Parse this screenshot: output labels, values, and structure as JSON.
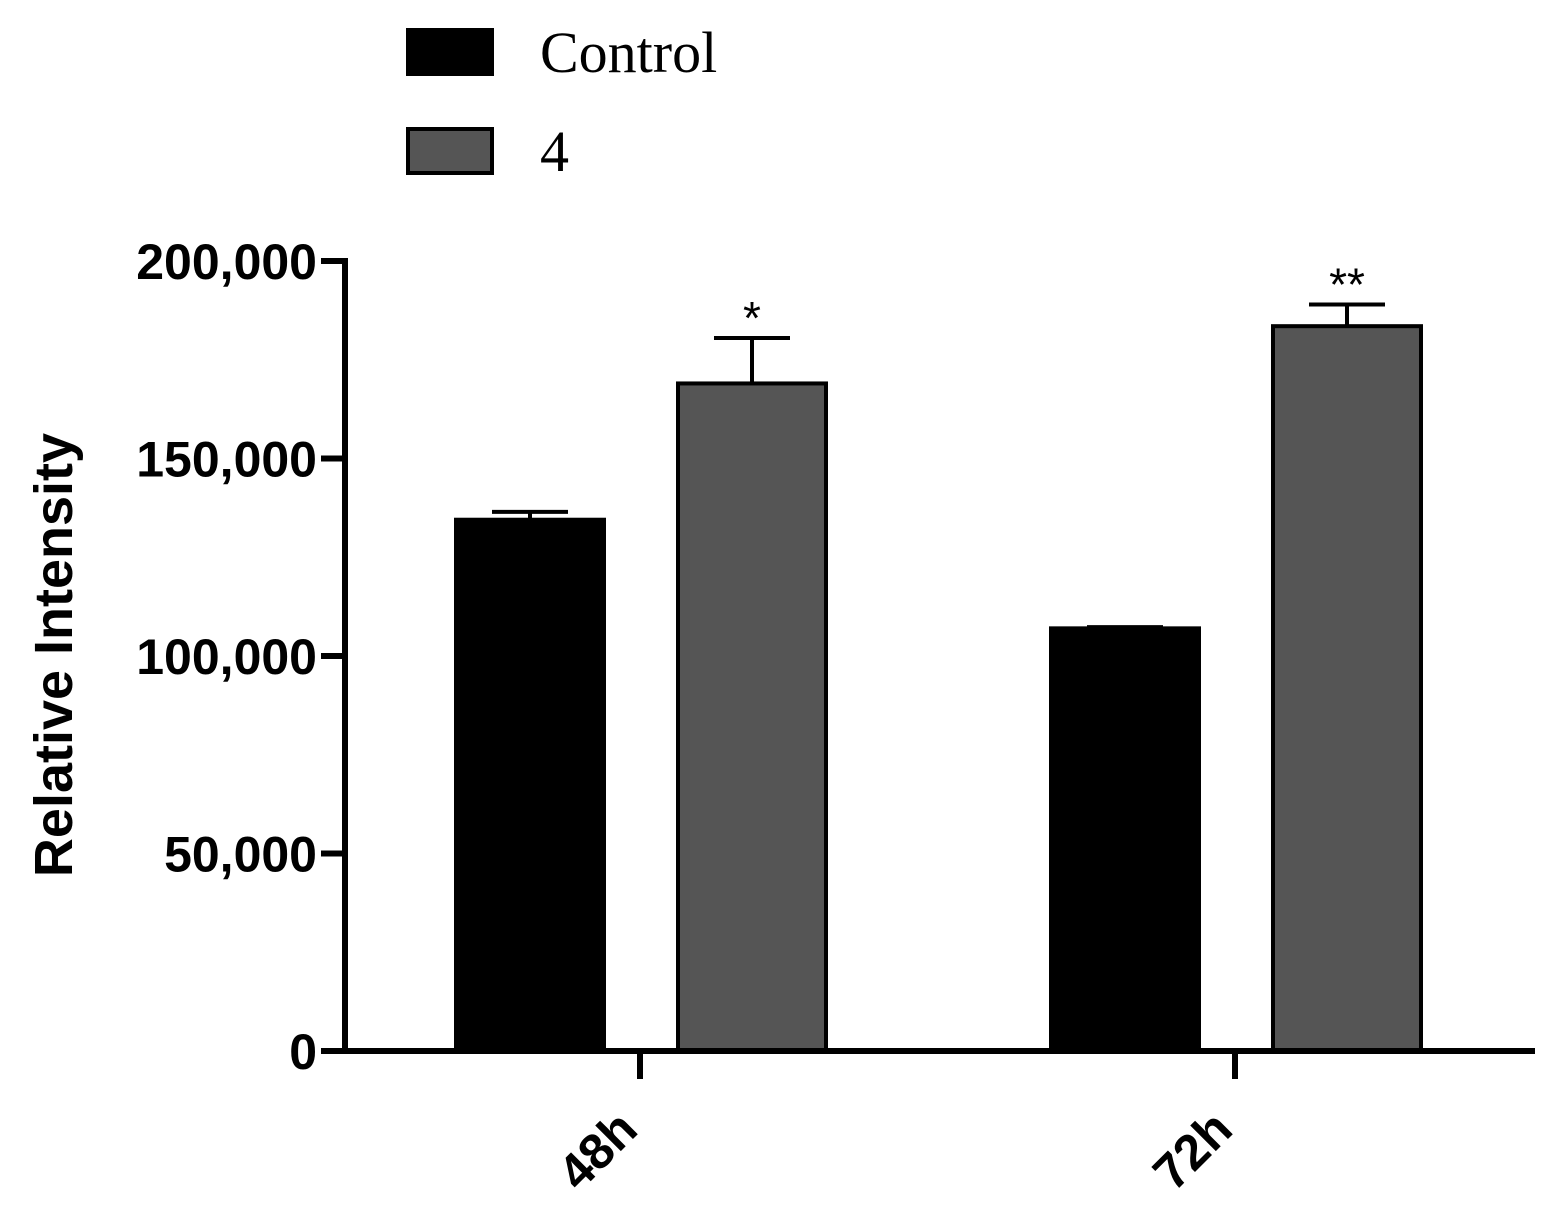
{
  "chart_data": {
    "type": "bar",
    "title": "",
    "xlabel": "",
    "ylabel": "Relative Intensity",
    "ylim": [
      0,
      200000
    ],
    "yticks": [
      0,
      50000,
      100000,
      150000,
      200000
    ],
    "ytick_labels": [
      "0",
      "50,000",
      "100,000",
      "150,000",
      "200,000"
    ],
    "categories": [
      "48h",
      "72h"
    ],
    "series": [
      {
        "name": "Control",
        "color": "#000000",
        "values": [
          134500,
          107000
        ],
        "errors": [
          2000,
          300
        ],
        "annotations": [
          "",
          ""
        ]
      },
      {
        "name": "4",
        "color": "#555555",
        "values": [
          169000,
          183500
        ],
        "errors": [
          11500,
          5500
        ],
        "annotations": [
          "*",
          "**"
        ]
      }
    ],
    "legend_position": "top-left"
  }
}
